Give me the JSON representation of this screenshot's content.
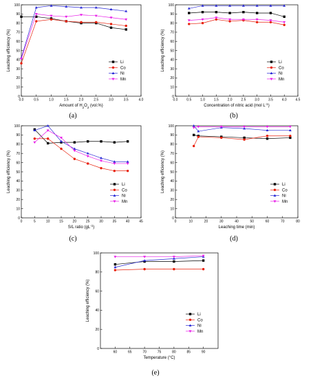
{
  "series_styles": [
    {
      "name": "Li",
      "color": "#000000",
      "marker": "square"
    },
    {
      "name": "Co",
      "color": "#e8200c",
      "marker": "circle"
    },
    {
      "name": "Ni",
      "color": "#2a2ad6",
      "marker": "triangle-up"
    },
    {
      "name": "Mn",
      "color": "#e81ee8",
      "marker": "triangle-down"
    }
  ],
  "chart_data": [
    {
      "type": "line",
      "panel_label": "(a)",
      "xlabel_parts": [
        "Amount of H",
        "2",
        "O",
        "2",
        " (vol.%)"
      ],
      "ylabel": "Leaching efficiency (%)",
      "xlim": [
        0,
        4.0
      ],
      "ylim": [
        0,
        100
      ],
      "xticks": [
        "0.0",
        "0.5",
        "1.0",
        "1.5",
        "2.0",
        "2.5",
        "3.0",
        "3.5",
        "4.0"
      ],
      "yticks": [
        "0",
        "10",
        "20",
        "30",
        "40",
        "50",
        "60",
        "70",
        "80",
        "90",
        "100"
      ],
      "x": [
        0,
        0.5,
        1.0,
        1.5,
        2.0,
        2.5,
        3.0,
        3.5
      ],
      "series": [
        {
          "name": "Li",
          "values": [
            87,
            87,
            85,
            82,
            80,
            80,
            75,
            73
          ]
        },
        {
          "name": "Co",
          "values": [
            36,
            82,
            84,
            82,
            81,
            81,
            79,
            77
          ]
        },
        {
          "name": "Ni",
          "values": [
            42,
            97,
            99,
            98,
            97,
            97,
            95,
            93
          ]
        },
        {
          "name": "Mn",
          "values": [
            41,
            90,
            88,
            87,
            89,
            88,
            86,
            84
          ]
        }
      ],
      "legend": "center-right"
    },
    {
      "type": "line",
      "panel_label": "(b)",
      "xlabel_parts": [
        "Concentration of nitric acid (mol L",
        "-1",
        ")"
      ],
      "ylabel": "Leaching efficiency (%)",
      "xlim": [
        0,
        4.5
      ],
      "ylim": [
        0,
        100
      ],
      "xticks": [
        "0.0",
        "0.5",
        "1.0",
        "1.5",
        "2.0",
        "2.5",
        "3.0",
        "3.5",
        "4.0",
        "4.5"
      ],
      "yticks": [
        "0",
        "10",
        "20",
        "30",
        "40",
        "50",
        "60",
        "70",
        "80",
        "90",
        "100"
      ],
      "x": [
        0.5,
        1.0,
        1.5,
        2.0,
        2.5,
        3.0,
        3.5,
        4.0
      ],
      "series": [
        {
          "name": "Li",
          "values": [
            91,
            92,
            92,
            91,
            92,
            91,
            91,
            87
          ]
        },
        {
          "name": "Co",
          "values": [
            79,
            80,
            84,
            82,
            83,
            81,
            81,
            78
          ]
        },
        {
          "name": "Ni",
          "values": [
            96,
            99,
            99,
            99,
            99,
            99,
            99,
            99
          ]
        },
        {
          "name": "Mn",
          "values": [
            83,
            84,
            86,
            84,
            84,
            84,
            83,
            81
          ]
        }
      ],
      "legend": "center-right"
    },
    {
      "type": "line",
      "panel_label": "(c)",
      "xlabel_parts": [
        "S/L ratio (gL",
        "-1",
        ")"
      ],
      "ylabel": "Leaching efficiency (%)",
      "xlim": [
        0,
        45
      ],
      "ylim": [
        0,
        100
      ],
      "xticks": [
        "0",
        "5",
        "10",
        "15",
        "20",
        "25",
        "30",
        "35",
        "40",
        "45"
      ],
      "yticks": [
        "0",
        "10",
        "20",
        "30",
        "40",
        "50",
        "60",
        "70",
        "80",
        "90",
        "100"
      ],
      "x": [
        5,
        10,
        15,
        20,
        25,
        30,
        35,
        40
      ],
      "series": [
        {
          "name": "Li",
          "values": [
            96,
            81,
            82,
            82,
            83,
            83,
            82,
            83
          ]
        },
        {
          "name": "Co",
          "values": [
            86,
            86,
            75,
            64,
            59,
            54,
            51,
            51
          ]
        },
        {
          "name": "Ni",
          "values": [
            95,
            100,
            83,
            75,
            70,
            65,
            61,
            61
          ]
        },
        {
          "name": "Mn",
          "values": [
            82,
            95,
            87,
            73,
            67,
            62,
            59,
            59
          ]
        }
      ],
      "legend": "center-right"
    },
    {
      "type": "line",
      "panel_label": "(d)",
      "xlabel_parts": [
        "Leaching time (min)"
      ],
      "ylabel": "Leaching efficiency (%)",
      "xlim": [
        0,
        80
      ],
      "ylim": [
        0,
        100
      ],
      "xticks": [
        "0",
        "10",
        "20",
        "30",
        "40",
        "50",
        "60",
        "70",
        "80"
      ],
      "yticks": [
        "0",
        "10",
        "20",
        "30",
        "40",
        "50",
        "60",
        "70",
        "80",
        "90",
        "100"
      ],
      "x": [
        12,
        15,
        30,
        45,
        60,
        75
      ],
      "series": [
        {
          "name": "Li",
          "values": [
            90,
            89,
            88,
            87,
            86,
            87
          ]
        },
        {
          "name": "Co",
          "values": [
            78,
            88,
            87,
            85,
            89,
            89
          ]
        },
        {
          "name": "Ni",
          "values": [
            100,
            94,
            98,
            97,
            95,
            95
          ]
        },
        {
          "name": "Mn",
          "values": [
            98,
            99,
            99,
            99,
            99,
            99
          ]
        }
      ],
      "legend": "center-right"
    },
    {
      "type": "line",
      "panel_label": "(e)",
      "xlabel_parts": [
        "Temperature (°C)"
      ],
      "ylabel": "Leaching efficiency (%)",
      "xlim": [
        55,
        95
      ],
      "ylim": [
        0,
        100
      ],
      "xticks": [
        "60",
        "65",
        "70",
        "75",
        "80",
        "85",
        "90"
      ],
      "yticks": [
        "0",
        "20",
        "40",
        "60",
        "80",
        "100"
      ],
      "x": [
        60,
        70,
        80,
        90
      ],
      "series": [
        {
          "name": "Li",
          "values": [
            88,
            91,
            91,
            92
          ]
        },
        {
          "name": "Co",
          "values": [
            82,
            83,
            83,
            83
          ]
        },
        {
          "name": "Ni",
          "values": [
            85,
            92,
            94,
            96
          ]
        },
        {
          "name": "Mn",
          "values": [
            96,
            96,
            96,
            97
          ]
        }
      ],
      "legend": "center-right"
    }
  ]
}
